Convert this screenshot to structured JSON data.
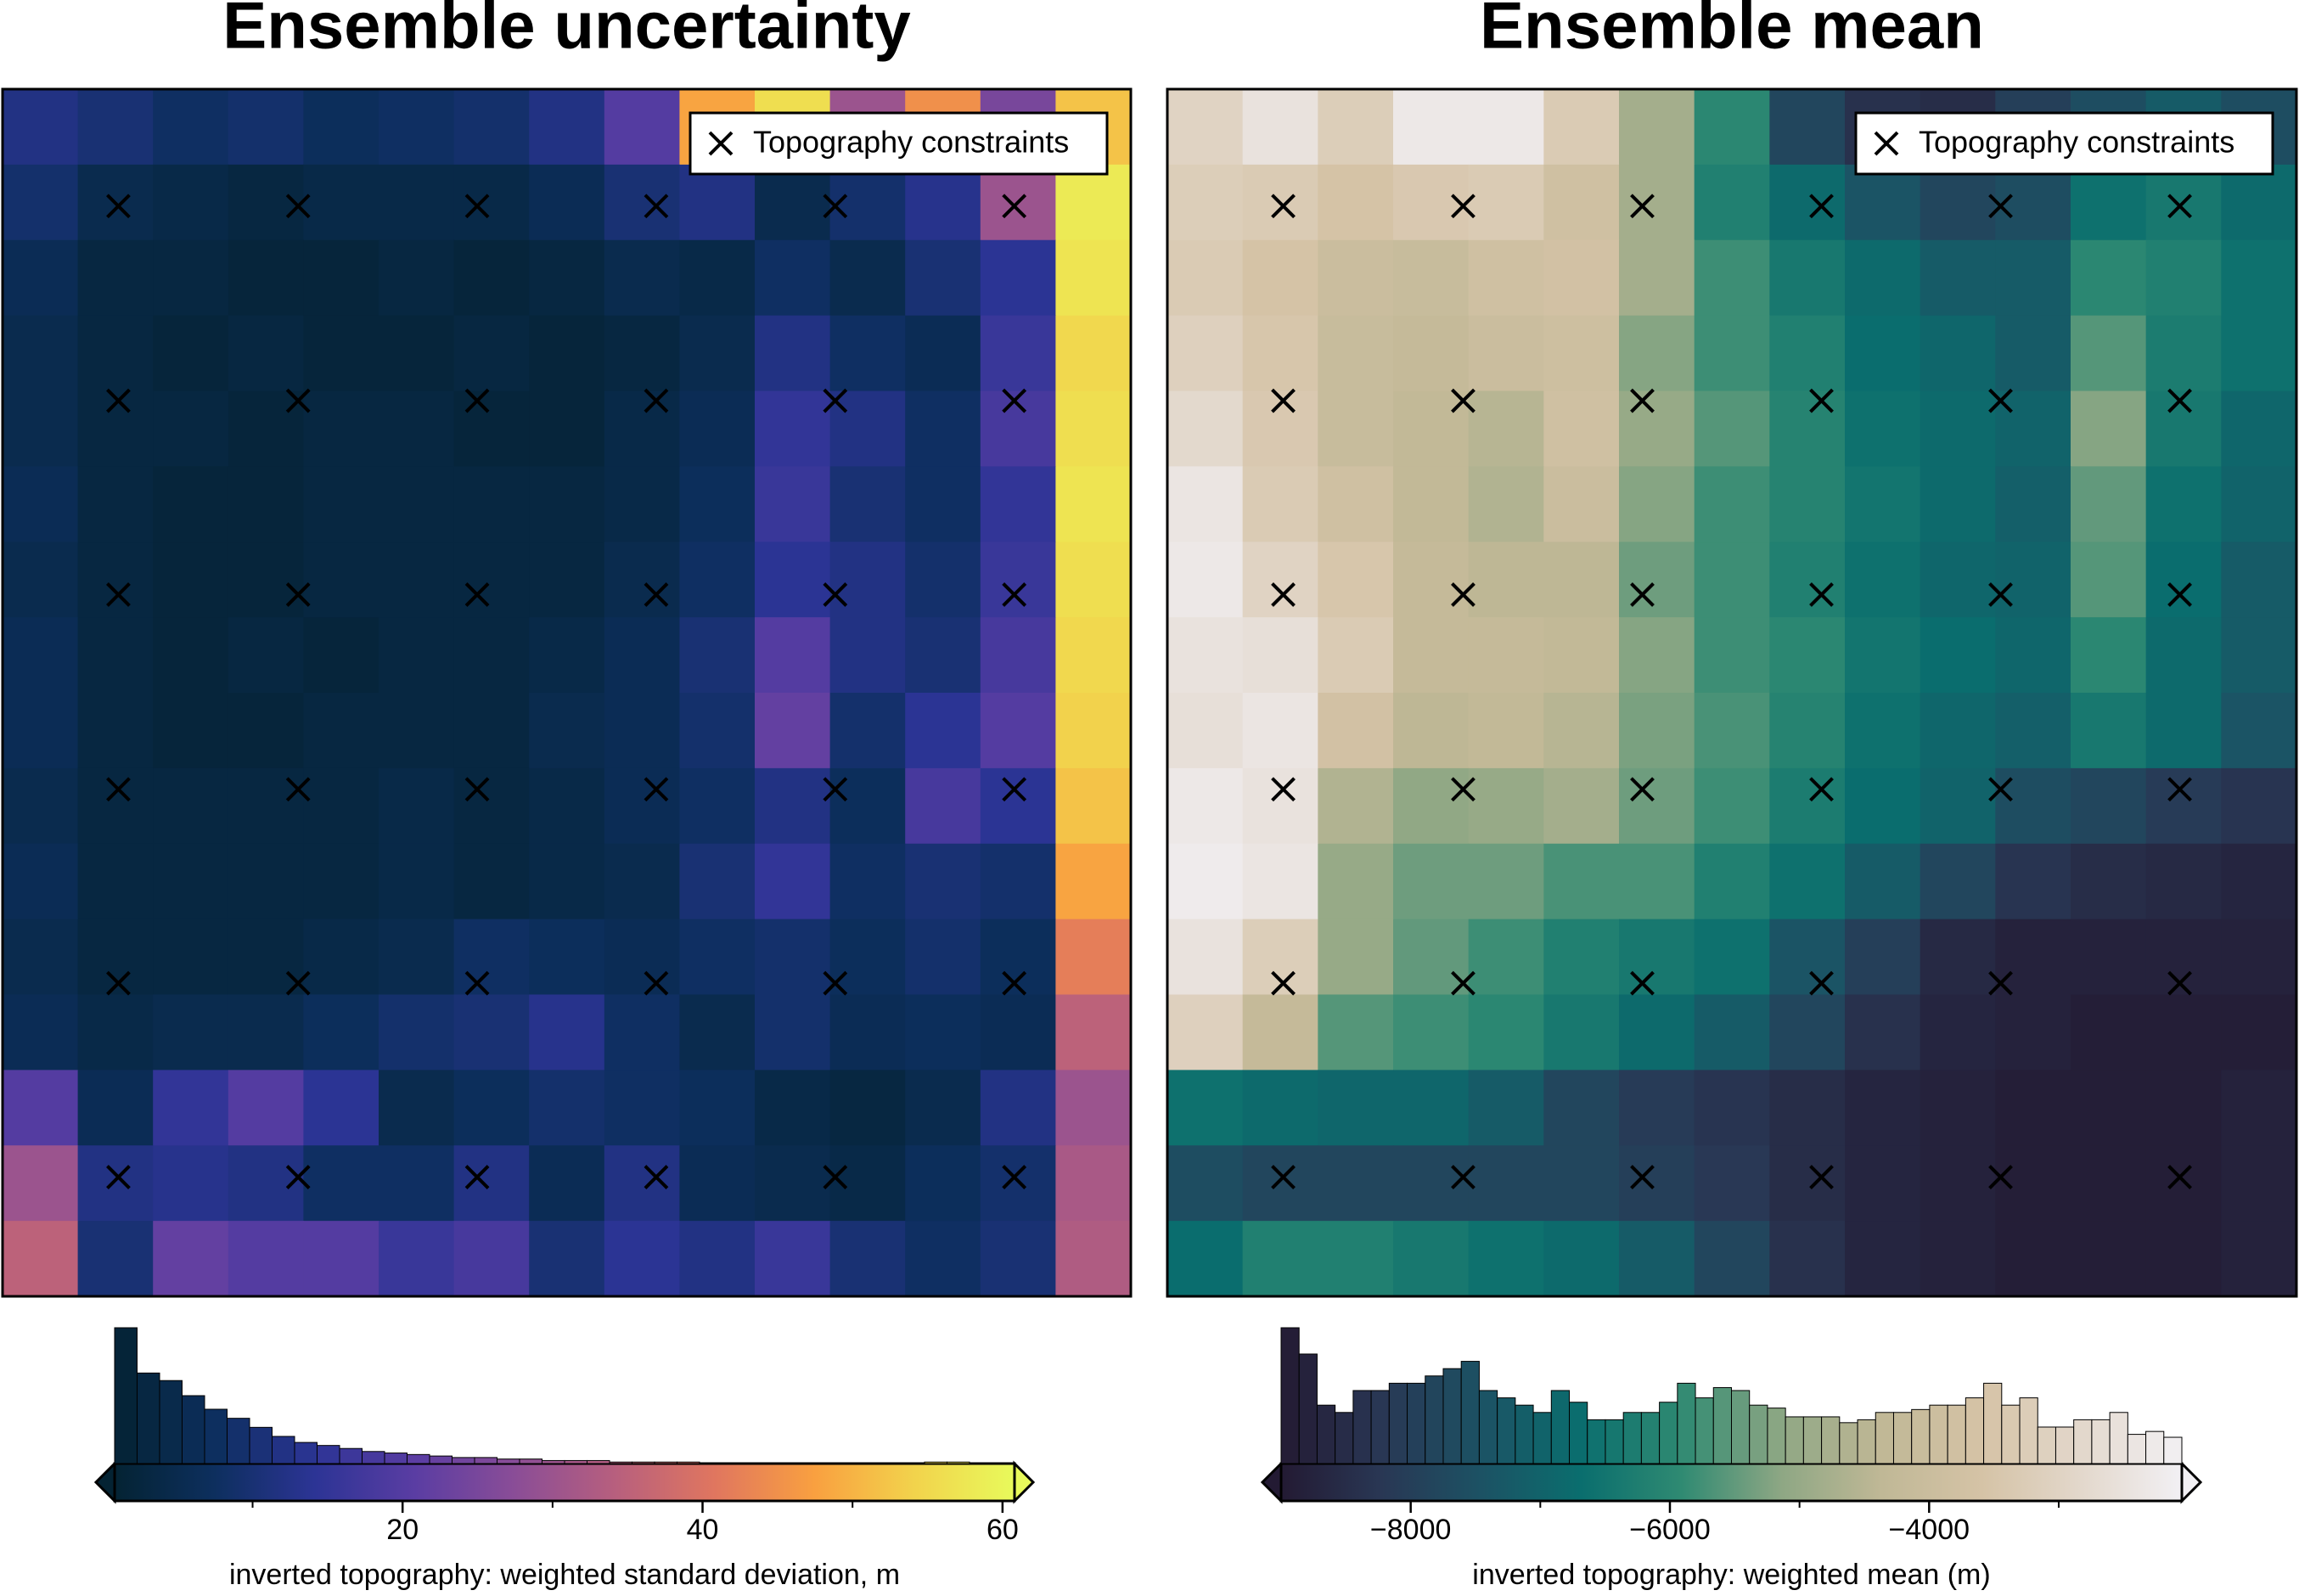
{
  "chart_data": [
    {
      "type": "heatmap",
      "title": "Ensemble uncertainty",
      "origin": "upper",
      "xlim": [
        0,
        15
      ],
      "ylim": [
        0,
        16
      ],
      "z": [
        [
          12,
          10,
          8,
          9,
          7,
          8,
          9,
          12,
          20,
          48,
          56,
          30,
          45,
          25,
          52
        ],
        [
          9,
          5,
          4,
          3,
          4,
          4,
          4,
          6,
          10,
          12,
          5,
          9,
          13,
          30,
          58
        ],
        [
          6,
          3,
          3,
          2,
          2,
          3,
          2,
          3,
          5,
          4,
          8,
          5,
          10,
          14,
          57
        ],
        [
          5,
          3,
          2,
          3,
          2,
          2,
          3,
          2,
          3,
          5,
          12,
          8,
          6,
          16,
          55
        ],
        [
          5,
          3,
          3,
          2,
          3,
          3,
          2,
          2,
          4,
          6,
          15,
          12,
          8,
          18,
          56
        ],
        [
          6,
          3,
          2,
          2,
          3,
          3,
          3,
          3,
          4,
          7,
          16,
          10,
          8,
          15,
          57
        ],
        [
          5,
          3,
          2,
          2,
          3,
          3,
          3,
          3,
          5,
          8,
          14,
          12,
          9,
          16,
          56
        ],
        [
          6,
          3,
          2,
          3,
          2,
          3,
          3,
          4,
          6,
          10,
          20,
          12,
          10,
          18,
          55
        ],
        [
          6,
          3,
          2,
          2,
          3,
          3,
          3,
          5,
          6,
          9,
          22,
          9,
          14,
          20,
          54
        ],
        [
          5,
          3,
          3,
          3,
          3,
          4,
          3,
          4,
          6,
          8,
          12,
          7,
          18,
          14,
          52
        ],
        [
          6,
          3,
          3,
          3,
          3,
          4,
          3,
          4,
          5,
          10,
          15,
          8,
          10,
          9,
          48
        ],
        [
          5,
          3,
          3,
          3,
          4,
          5,
          8,
          7,
          6,
          8,
          9,
          7,
          9,
          7,
          42
        ],
        [
          6,
          4,
          5,
          5,
          7,
          9,
          10,
          13,
          8,
          5,
          9,
          6,
          7,
          6,
          35
        ],
        [
          20,
          6,
          15,
          20,
          14,
          5,
          7,
          9,
          8,
          7,
          4,
          3,
          5,
          12,
          30
        ],
        [
          30,
          12,
          13,
          12,
          8,
          8,
          12,
          6,
          12,
          6,
          5,
          4,
          7,
          9,
          32
        ],
        [
          35,
          10,
          22,
          20,
          20,
          16,
          18,
          10,
          14,
          12,
          16,
          10,
          8,
          10,
          33
        ]
      ],
      "clim": [
        0.8,
        60.8
      ],
      "colormap": [
        "#042333",
        "#0d2f5e",
        "#2c3495",
        "#5a3da3",
        "#8a4d97",
        "#b75f7e",
        "#e0765f",
        "#f9a040",
        "#f2d34c",
        "#e8fa5b"
      ],
      "colorbar_label": "inverted topography: weighted standard deviation, m",
      "xticks": [
        20,
        40,
        60
      ],
      "minor_xticks": [
        10,
        30,
        50
      ],
      "histogram": {
        "bins": [
          0.8,
          2.3,
          3.8,
          5.3,
          6.8,
          8.3,
          9.8,
          11.3,
          12.8,
          14.3,
          15.8,
          17.3,
          18.8,
          20.3,
          21.8,
          23.3,
          24.8,
          26.3,
          27.8,
          29.3,
          30.8,
          32.3,
          33.8,
          35.3,
          36.8,
          38.3,
          39.8,
          41.3,
          42.8,
          44.3,
          45.8,
          47.3,
          48.8,
          50.3,
          51.8,
          53.3,
          54.8,
          56.3,
          57.8,
          59.3,
          60.8
        ],
        "counts": [
          90,
          60,
          55,
          45,
          36,
          30,
          24,
          18,
          14,
          12,
          10,
          8,
          7,
          6,
          5,
          4,
          4,
          3,
          3,
          2,
          2,
          2,
          1,
          1,
          1,
          1,
          0,
          0,
          0,
          0,
          0,
          0,
          0,
          0,
          0,
          0,
          1,
          1,
          0,
          0
        ]
      },
      "constraints": {
        "name": "Topography constraints",
        "color": "#000000",
        "x": [
          1.54,
          3.93,
          6.31,
          8.69,
          11.07,
          13.45,
          1.54,
          3.93,
          6.31,
          8.69,
          11.07,
          13.45,
          1.54,
          3.93,
          6.31,
          8.69,
          11.07,
          13.45,
          1.54,
          3.93,
          6.31,
          8.69,
          11.07,
          13.45,
          1.54,
          3.93,
          6.31,
          8.69,
          11.07,
          13.45,
          1.54,
          3.93,
          6.31,
          8.69,
          11.07,
          13.45
        ],
        "y": [
          14.45,
          14.45,
          14.45,
          14.45,
          14.45,
          14.45,
          11.87,
          11.87,
          11.87,
          11.87,
          11.87,
          11.87,
          9.3,
          9.3,
          9.3,
          9.3,
          9.3,
          9.3,
          6.72,
          6.72,
          6.72,
          6.72,
          6.72,
          6.72,
          4.15,
          4.15,
          4.15,
          4.15,
          4.15,
          4.15,
          1.58,
          1.58,
          1.58,
          1.58,
          1.58,
          1.58
        ]
      },
      "legend": "upper right"
    },
    {
      "type": "heatmap",
      "title": "Ensemble mean",
      "origin": "upper",
      "xlim": [
        0,
        15
      ],
      "ylim": [
        0,
        16
      ],
      "z": [
        [
          -3000,
          -2500,
          -3200,
          -2300,
          -2300,
          -3300,
          -4800,
          -6000,
          -7800,
          -8400,
          -8500,
          -8000,
          -7600,
          -7200,
          -7600
        ],
        [
          -3200,
          -3300,
          -3600,
          -3400,
          -3300,
          -3800,
          -4800,
          -6200,
          -6800,
          -7400,
          -7800,
          -7600,
          -6600,
          -6400,
          -6800
        ],
        [
          -3300,
          -3600,
          -4000,
          -4100,
          -3800,
          -3700,
          -4800,
          -5800,
          -6400,
          -6800,
          -7200,
          -7200,
          -6000,
          -6200,
          -6600
        ],
        [
          -3100,
          -3500,
          -4100,
          -4200,
          -4000,
          -3900,
          -5200,
          -5800,
          -6200,
          -6700,
          -6900,
          -7200,
          -5600,
          -6300,
          -6600
        ],
        [
          -2800,
          -3400,
          -4100,
          -4300,
          -4500,
          -3800,
          -5000,
          -5600,
          -6100,
          -6600,
          -6800,
          -7000,
          -5200,
          -6400,
          -6900
        ],
        [
          -2400,
          -3300,
          -3800,
          -4300,
          -4600,
          -4000,
          -5200,
          -5800,
          -6100,
          -6500,
          -6800,
          -7100,
          -5500,
          -6600,
          -7000
        ],
        [
          -2300,
          -3000,
          -3500,
          -4200,
          -4400,
          -4400,
          -5400,
          -5800,
          -6200,
          -6600,
          -6900,
          -7000,
          -5600,
          -6700,
          -7200
        ],
        [
          -2500,
          -2600,
          -3300,
          -4200,
          -4200,
          -4300,
          -5200,
          -5800,
          -6000,
          -6500,
          -6700,
          -6900,
          -6000,
          -6800,
          -7200
        ],
        [
          -2600,
          -2400,
          -3700,
          -4400,
          -4300,
          -4500,
          -5300,
          -5700,
          -6100,
          -6600,
          -6900,
          -7100,
          -6400,
          -6800,
          -7400
        ],
        [
          -2300,
          -2500,
          -4600,
          -5100,
          -5000,
          -4800,
          -5400,
          -5800,
          -6300,
          -6700,
          -7000,
          -7600,
          -7800,
          -8100,
          -8300
        ],
        [
          -2200,
          -2400,
          -5000,
          -5400,
          -5400,
          -5700,
          -5700,
          -6200,
          -6600,
          -7200,
          -7800,
          -8300,
          -8500,
          -8600,
          -8700
        ],
        [
          -2500,
          -3200,
          -5000,
          -5500,
          -5800,
          -6200,
          -6400,
          -6600,
          -7400,
          -8000,
          -8600,
          -8800,
          -8800,
          -8800,
          -8800
        ],
        [
          -3100,
          -4200,
          -5600,
          -5800,
          -6000,
          -6400,
          -6800,
          -7200,
          -7800,
          -8400,
          -8700,
          -8800,
          -8900,
          -8900,
          -8900
        ],
        [
          -6600,
          -6800,
          -6900,
          -6900,
          -7200,
          -7800,
          -8100,
          -8300,
          -8500,
          -8700,
          -8800,
          -8900,
          -8900,
          -8900,
          -8800
        ],
        [
          -7600,
          -7800,
          -7800,
          -7800,
          -7800,
          -7800,
          -8000,
          -8200,
          -8500,
          -8700,
          -8800,
          -8900,
          -8900,
          -8900,
          -8800
        ],
        [
          -6700,
          -6200,
          -6200,
          -6400,
          -6600,
          -6800,
          -7200,
          -7800,
          -8400,
          -8700,
          -8800,
          -8900,
          -8900,
          -8900,
          -8800
        ]
      ],
      "clim": [
        -9000,
        -2050
      ],
      "colormap": [
        "#231a33",
        "#293754",
        "#1c5264",
        "#0a6e6e",
        "#2f8a72",
        "#8ea784",
        "#c0b896",
        "#d5c3a6",
        "#e3d8cc",
        "#f2f0f4"
      ],
      "colorbar_label": "inverted topography: weighted mean (m)",
      "xticks": [
        {
          "value": -8000,
          "label": "−8000"
        },
        {
          "value": -6000,
          "label": "−6000"
        },
        {
          "value": -4000,
          "label": "−4000"
        }
      ],
      "minor_xticks": [
        -7000,
        -5000,
        -3000
      ],
      "histogram": {
        "bins": [
          -9000,
          -8861,
          -8722,
          -8583,
          -8444,
          -8305,
          -8166,
          -8027,
          -7888,
          -7749,
          -7610,
          -7471,
          -7332,
          -7193,
          -7054,
          -6915,
          -6776,
          -6637,
          -6498,
          -6359,
          -6220,
          -6081,
          -5942,
          -5803,
          -5664,
          -5525,
          -5386,
          -5247,
          -5108,
          -4969,
          -4830,
          -4691,
          -4552,
          -4413,
          -4274,
          -4135,
          -3996,
          -3857,
          -3718,
          -3579,
          -3440,
          -3301,
          -3162,
          -3023,
          -2884,
          -2745,
          -2606,
          -2467,
          -2328,
          -2189,
          -2050
        ],
        "counts": [
          93,
          75,
          40,
          35,
          50,
          50,
          55,
          55,
          60,
          65,
          70,
          50,
          45,
          40,
          35,
          50,
          42,
          30,
          30,
          35,
          35,
          42,
          55,
          45,
          52,
          50,
          40,
          38,
          32,
          32,
          32,
          28,
          30,
          35,
          35,
          37,
          40,
          40,
          45,
          55,
          40,
          45,
          25,
          25,
          30,
          30,
          35,
          20,
          22,
          18
        ]
      },
      "constraints": {
        "name": "Topography constraints",
        "color": "#000000",
        "x": [
          1.54,
          3.93,
          6.31,
          8.69,
          11.07,
          13.45,
          1.54,
          3.93,
          6.31,
          8.69,
          11.07,
          13.45,
          1.54,
          3.93,
          6.31,
          8.69,
          11.07,
          13.45,
          1.54,
          3.93,
          6.31,
          8.69,
          11.07,
          13.45,
          1.54,
          3.93,
          6.31,
          8.69,
          11.07,
          13.45,
          1.54,
          3.93,
          6.31,
          8.69,
          11.07,
          13.45
        ],
        "y": [
          14.45,
          14.45,
          14.45,
          14.45,
          14.45,
          14.45,
          11.87,
          11.87,
          11.87,
          11.87,
          11.87,
          11.87,
          9.3,
          9.3,
          9.3,
          9.3,
          9.3,
          9.3,
          6.72,
          6.72,
          6.72,
          6.72,
          6.72,
          6.72,
          4.15,
          4.15,
          4.15,
          4.15,
          4.15,
          4.15,
          1.58,
          1.58,
          1.58,
          1.58,
          1.58,
          1.58
        ]
      },
      "legend": "upper right"
    }
  ]
}
